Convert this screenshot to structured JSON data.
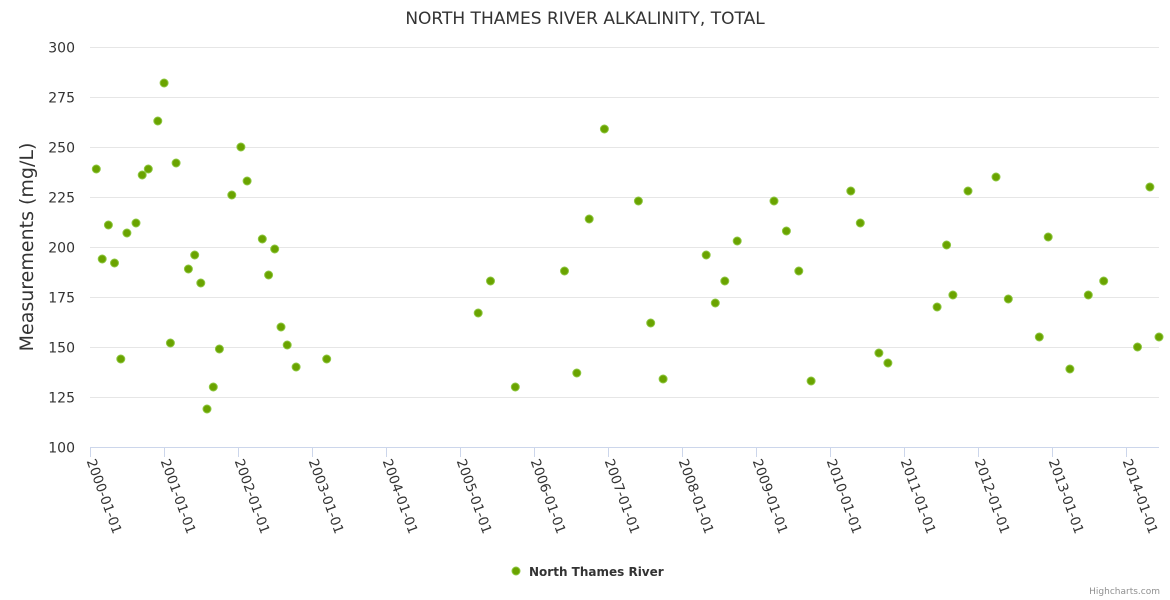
{
  "chart_data": {
    "type": "scatter",
    "title": "NORTH THAMES RIVER ALKALINITY, TOTAL",
    "xlabel": "",
    "ylabel": "Measurements (mg/L)",
    "ylim": [
      100,
      300
    ],
    "yticks": [
      100,
      125,
      150,
      175,
      200,
      225,
      250,
      275,
      300
    ],
    "xlim": [
      "2000-01-01",
      "2014-06-15"
    ],
    "xticks": [
      "2000-01-01",
      "2001-01-01",
      "2002-01-01",
      "2003-01-01",
      "2004-01-01",
      "2005-01-01",
      "2006-01-01",
      "2007-01-01",
      "2008-01-01",
      "2009-01-01",
      "2010-01-01",
      "2011-01-01",
      "2012-01-01",
      "2013-01-01",
      "2014-01-01"
    ],
    "color": "#6aa300",
    "legend_position": "bottom-center",
    "series": [
      {
        "name": "North Thames River",
        "points": [
          [
            "2000-02-01",
            239
          ],
          [
            "2000-03-01",
            194
          ],
          [
            "2000-04-01",
            211
          ],
          [
            "2000-05-01",
            192
          ],
          [
            "2000-06-01",
            144
          ],
          [
            "2000-07-01",
            207
          ],
          [
            "2000-08-15",
            212
          ],
          [
            "2000-09-15",
            236
          ],
          [
            "2000-10-15",
            239
          ],
          [
            "2000-12-01",
            263
          ],
          [
            "2001-01-01",
            282
          ],
          [
            "2001-02-01",
            152
          ],
          [
            "2001-03-01",
            242
          ],
          [
            "2001-05-01",
            189
          ],
          [
            "2001-06-01",
            196
          ],
          [
            "2001-07-01",
            182
          ],
          [
            "2001-08-01",
            119
          ],
          [
            "2001-09-01",
            130
          ],
          [
            "2001-10-01",
            149
          ],
          [
            "2001-12-01",
            226
          ],
          [
            "2002-01-15",
            250
          ],
          [
            "2002-02-15",
            233
          ],
          [
            "2002-05-01",
            204
          ],
          [
            "2002-06-01",
            186
          ],
          [
            "2002-07-01",
            199
          ],
          [
            "2002-08-01",
            160
          ],
          [
            "2002-09-01",
            151
          ],
          [
            "2002-10-15",
            140
          ],
          [
            "2003-03-15",
            144
          ],
          [
            "2005-04-01",
            167
          ],
          [
            "2005-06-01",
            183
          ],
          [
            "2005-10-01",
            130
          ],
          [
            "2006-06-01",
            188
          ],
          [
            "2006-08-01",
            137
          ],
          [
            "2006-10-01",
            214
          ],
          [
            "2006-12-15",
            259
          ],
          [
            "2007-06-01",
            223
          ],
          [
            "2007-08-01",
            162
          ],
          [
            "2007-10-01",
            134
          ],
          [
            "2008-05-01",
            196
          ],
          [
            "2008-06-15",
            172
          ],
          [
            "2008-08-01",
            183
          ],
          [
            "2008-10-01",
            203
          ],
          [
            "2009-04-01",
            223
          ],
          [
            "2009-06-01",
            208
          ],
          [
            "2009-08-01",
            188
          ],
          [
            "2009-10-01",
            133
          ],
          [
            "2010-04-15",
            228
          ],
          [
            "2010-06-01",
            212
          ],
          [
            "2010-09-01",
            147
          ],
          [
            "2010-10-15",
            142
          ],
          [
            "2011-06-15",
            170
          ],
          [
            "2011-08-01",
            201
          ],
          [
            "2011-09-01",
            176
          ],
          [
            "2011-11-15",
            228
          ],
          [
            "2012-04-01",
            235
          ],
          [
            "2012-06-01",
            174
          ],
          [
            "2012-11-01",
            155
          ],
          [
            "2012-12-15",
            205
          ],
          [
            "2013-04-01",
            139
          ],
          [
            "2013-07-01",
            176
          ],
          [
            "2013-09-15",
            183
          ],
          [
            "2014-03-01",
            150
          ],
          [
            "2014-05-01",
            230
          ],
          [
            "2014-06-15",
            155
          ]
        ]
      }
    ]
  },
  "credits": "Highcharts.com"
}
